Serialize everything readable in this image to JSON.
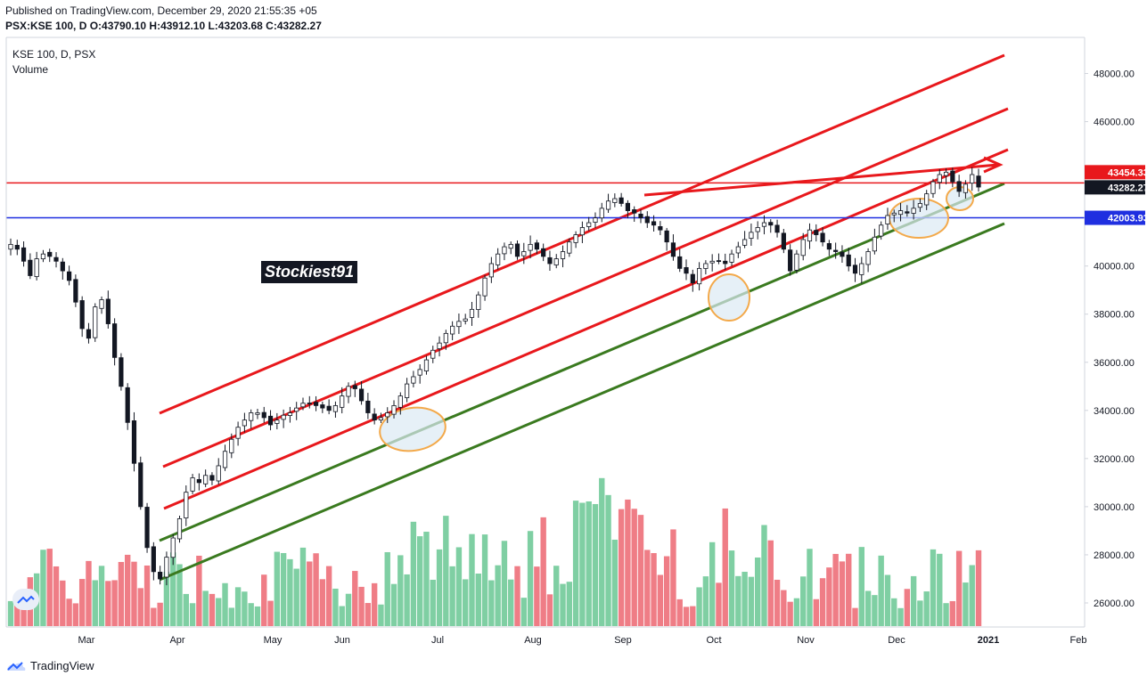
{
  "header": {
    "published": "Published on TradingView.com, December 29, 2020 21:55:35 +05",
    "ohlc": "PSX:KSE 100, D  O:43790.10 H:43912.10 L:43203.68 C:43282.27"
  },
  "legend": {
    "symbol": "KSE 100, D, PSX",
    "volume": "Volume"
  },
  "watermark_text": "Stockiest91",
  "footer_brand": "TradingView",
  "colors": {
    "up": "#131722",
    "up_fill": "#ffffff",
    "down": "#131722",
    "vol_up": "#7fcfa3",
    "vol_down": "#ef7d86",
    "red_line": "#e8181c",
    "blue_line": "#1f2fe0",
    "green_line": "#3a7a1f",
    "ellipse": "#f3a94a",
    "ellipse_fill": "#dbe9f4"
  },
  "price_labels": [
    {
      "value": "43454.33",
      "bg": "#e8181c",
      "fg": "#ffffff"
    },
    {
      "value": "43282.27",
      "bg": "#131722",
      "fg": "#ffffff"
    },
    {
      "value": "42003.93",
      "bg": "#1f2fe0",
      "fg": "#ffffff"
    }
  ],
  "chart_data": {
    "type": "candlestick",
    "title": "KSE 100, D, PSX",
    "y_axis": {
      "ylim": [
        25000,
        49500
      ],
      "ticks": [
        "48000.00",
        "46000.00",
        "44000.00",
        "42000.00",
        "40000.00",
        "38000.00",
        "36000.00",
        "34000.00",
        "32000.00",
        "30000.00",
        "28000.00",
        "26000.00"
      ]
    },
    "x_axis": {
      "ticks": [
        "Mar",
        "Apr",
        "May",
        "Jun",
        "Jul",
        "Aug",
        "Sep",
        "Oct",
        "Nov",
        "Dec",
        "2021",
        "Feb"
      ]
    },
    "horizontal_lines": [
      {
        "value": 43454.33,
        "color": "red"
      },
      {
        "value": 42003.93,
        "color": "blue"
      }
    ],
    "close_approx": [
      40900,
      40700,
      40200,
      39600,
      40300,
      40500,
      40400,
      40200,
      39800,
      39400,
      38500,
      37400,
      37000,
      38300,
      38600,
      37600,
      36200,
      35000,
      33500,
      31800,
      30000,
      28300,
      27300,
      27000,
      27900,
      28700,
      29500,
      30600,
      31200,
      31000,
      31300,
      31100,
      31700,
      32300,
      32800,
      33300,
      33600,
      33900,
      33900,
      33700,
      33400,
      33600,
      33800,
      33900,
      34100,
      34300,
      34300,
      34200,
      34100,
      34000,
      34200,
      34600,
      35000,
      34900,
      34400,
      33900,
      33600,
      33700,
      33900,
      34200,
      34600,
      35100,
      35400,
      35700,
      36100,
      36500,
      36800,
      37200,
      37500,
      37700,
      37800,
      38200,
      38800,
      39500,
      40100,
      40500,
      40800,
      40900,
      40400,
      40600,
      40900,
      40700,
      40400,
      40100,
      40300,
      40600,
      41000,
      41300,
      41600,
      41800,
      42000,
      42400,
      42700,
      42800,
      42600,
      42300,
      42200,
      42000,
      41800,
      41700,
      41500,
      41000,
      40400,
      39900,
      39700,
      39300,
      39900,
      40100,
      40200,
      40200,
      40100,
      40500,
      40800,
      41100,
      41400,
      41600,
      41800,
      41700,
      41400,
      40700,
      39800,
      40500,
      41100,
      41500,
      41300,
      41000,
      40700,
      40600,
      40400,
      40000,
      39700,
      40100,
      40600,
      41200,
      41700,
      42100,
      42200,
      42300,
      42200,
      42400,
      42600,
      43000,
      43500,
      43800,
      43900,
      43500,
      43100,
      43400,
      43800,
      43282
    ]
  }
}
